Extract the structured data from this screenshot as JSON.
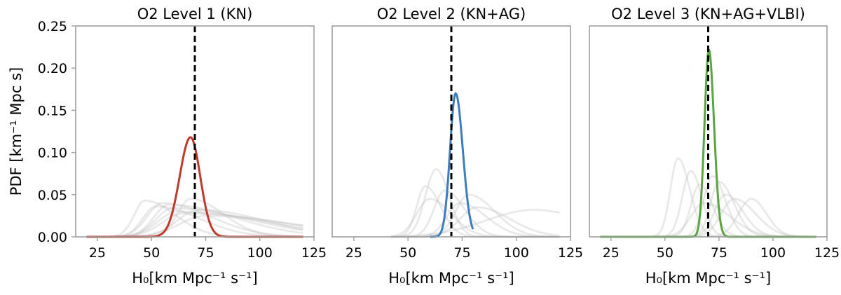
{
  "chart_data": [
    {
      "type": "line",
      "title": "O2 Level 1 (KN)",
      "xlabel": "H₀[km Mpc⁻¹ s⁻¹]",
      "ylabel": "PDF [km⁻¹ Mpc s]",
      "xlim": [
        15,
        125
      ],
      "ylim": [
        0,
        0.25
      ],
      "xticks": [
        "25",
        "50",
        "75",
        "100",
        "125"
      ],
      "yticks": [
        "0.00",
        "0.05",
        "0.10",
        "0.15",
        "0.20",
        "0.25"
      ],
      "grid": false,
      "reference_x": 70,
      "main_series": {
        "color": "#c0392b",
        "peak_x": 68,
        "peak_y": 0.118,
        "sigma_left": 5.0,
        "sigma_right": 4.5,
        "x": [
          20,
          120
        ]
      },
      "background_series": [
        {
          "peak_x": 47,
          "peak_y": 0.043,
          "sigma_left": 5,
          "sigma_right": 14
        },
        {
          "peak_x": 52,
          "peak_y": 0.036,
          "sigma_left": 6,
          "sigma_right": 20
        },
        {
          "peak_x": 55,
          "peak_y": 0.04,
          "sigma_left": 7,
          "sigma_right": 22
        },
        {
          "peak_x": 58,
          "peak_y": 0.038,
          "sigma_left": 7,
          "sigma_right": 30
        },
        {
          "peak_x": 60,
          "peak_y": 0.034,
          "sigma_left": 8,
          "sigma_right": 35
        },
        {
          "peak_x": 62,
          "peak_y": 0.03,
          "sigma_left": 9,
          "sigma_right": 40
        },
        {
          "peak_x": 65,
          "peak_y": 0.028,
          "sigma_left": 10,
          "sigma_right": 45
        },
        {
          "peak_x": 68,
          "peak_y": 0.045,
          "sigma_left": 6,
          "sigma_right": 15
        },
        {
          "peak_x": 72,
          "peak_y": 0.032,
          "sigma_left": 10,
          "sigma_right": 30
        },
        {
          "peak_x": 75,
          "peak_y": 0.025,
          "sigma_left": 12,
          "sigma_right": 40
        }
      ]
    },
    {
      "type": "line",
      "title": "O2 Level 2 (KN+AG)",
      "xlabel": "H₀[km Mpc⁻¹ s⁻¹]",
      "xlim": [
        15,
        125
      ],
      "ylim": [
        0,
        0.25
      ],
      "xticks": [
        "25",
        "50",
        "75",
        "100",
        "125"
      ],
      "grid": false,
      "reference_x": 70,
      "main_series": {
        "color": "#3b7dbf",
        "peak_x": 72,
        "peak_y": 0.17,
        "sigma_left": 2.6,
        "sigma_right": 3.3,
        "x": [
          60,
          80
        ]
      },
      "background_series": [
        {
          "peak_x": 58,
          "peak_y": 0.06,
          "sigma_left": 4,
          "sigma_right": 7,
          "x": [
            42,
            120
          ]
        },
        {
          "peak_x": 63,
          "peak_y": 0.08,
          "sigma_left": 5,
          "sigma_right": 6,
          "x": [
            42,
            120
          ]
        },
        {
          "peak_x": 60,
          "peak_y": 0.045,
          "sigma_left": 6,
          "sigma_right": 10,
          "x": [
            42,
            120
          ]
        },
        {
          "peak_x": 67,
          "peak_y": 0.055,
          "sigma_left": 5,
          "sigma_right": 9,
          "x": [
            42,
            120
          ]
        },
        {
          "peak_x": 74,
          "peak_y": 0.04,
          "sigma_left": 6,
          "sigma_right": 12,
          "x": [
            42,
            120
          ]
        },
        {
          "peak_x": 78,
          "peak_y": 0.05,
          "sigma_left": 6,
          "sigma_right": 12,
          "x": [
            42,
            120
          ]
        },
        {
          "peak_x": 82,
          "peak_y": 0.035,
          "sigma_left": 8,
          "sigma_right": 15,
          "x": [
            42,
            120
          ]
        },
        {
          "peak_x": 108,
          "peak_y": 0.032,
          "sigma_left": 22,
          "sigma_right": 25,
          "x": [
            42,
            120
          ]
        }
      ]
    },
    {
      "type": "line",
      "title": "O2 Level 3 (KN+AG+VLBI)",
      "xlabel": "H₀[km Mpc⁻¹ s⁻¹]",
      "xlim": [
        15,
        125
      ],
      "ylim": [
        0,
        0.25
      ],
      "xticks": [
        "25",
        "50",
        "75",
        "100",
        "125"
      ],
      "grid": false,
      "reference_x": 70,
      "main_series": {
        "color": "#5aa542",
        "peak_x": 70.3,
        "peak_y": 0.222,
        "sigma_left": 2.0,
        "sigma_right": 2.4,
        "x": [
          20,
          120
        ]
      },
      "background_series": [
        {
          "peak_x": 56,
          "peak_y": 0.093,
          "sigma_left": 3.5,
          "sigma_right": 5.5
        },
        {
          "peak_x": 62,
          "peak_y": 0.078,
          "sigma_left": 4,
          "sigma_right": 5
        },
        {
          "peak_x": 66,
          "peak_y": 0.062,
          "sigma_left": 4,
          "sigma_right": 6
        },
        {
          "peak_x": 72,
          "peak_y": 0.072,
          "sigma_left": 4,
          "sigma_right": 6
        },
        {
          "peak_x": 75,
          "peak_y": 0.065,
          "sigma_left": 4,
          "sigma_right": 7
        },
        {
          "peak_x": 78,
          "peak_y": 0.05,
          "sigma_left": 5,
          "sigma_right": 8
        },
        {
          "peak_x": 82,
          "peak_y": 0.045,
          "sigma_left": 6,
          "sigma_right": 10
        },
        {
          "peak_x": 90,
          "peak_y": 0.045,
          "sigma_left": 6,
          "sigma_right": 7
        },
        {
          "peak_x": 68,
          "peak_y": 0.04,
          "sigma_left": 6,
          "sigma_right": 12
        }
      ]
    }
  ]
}
